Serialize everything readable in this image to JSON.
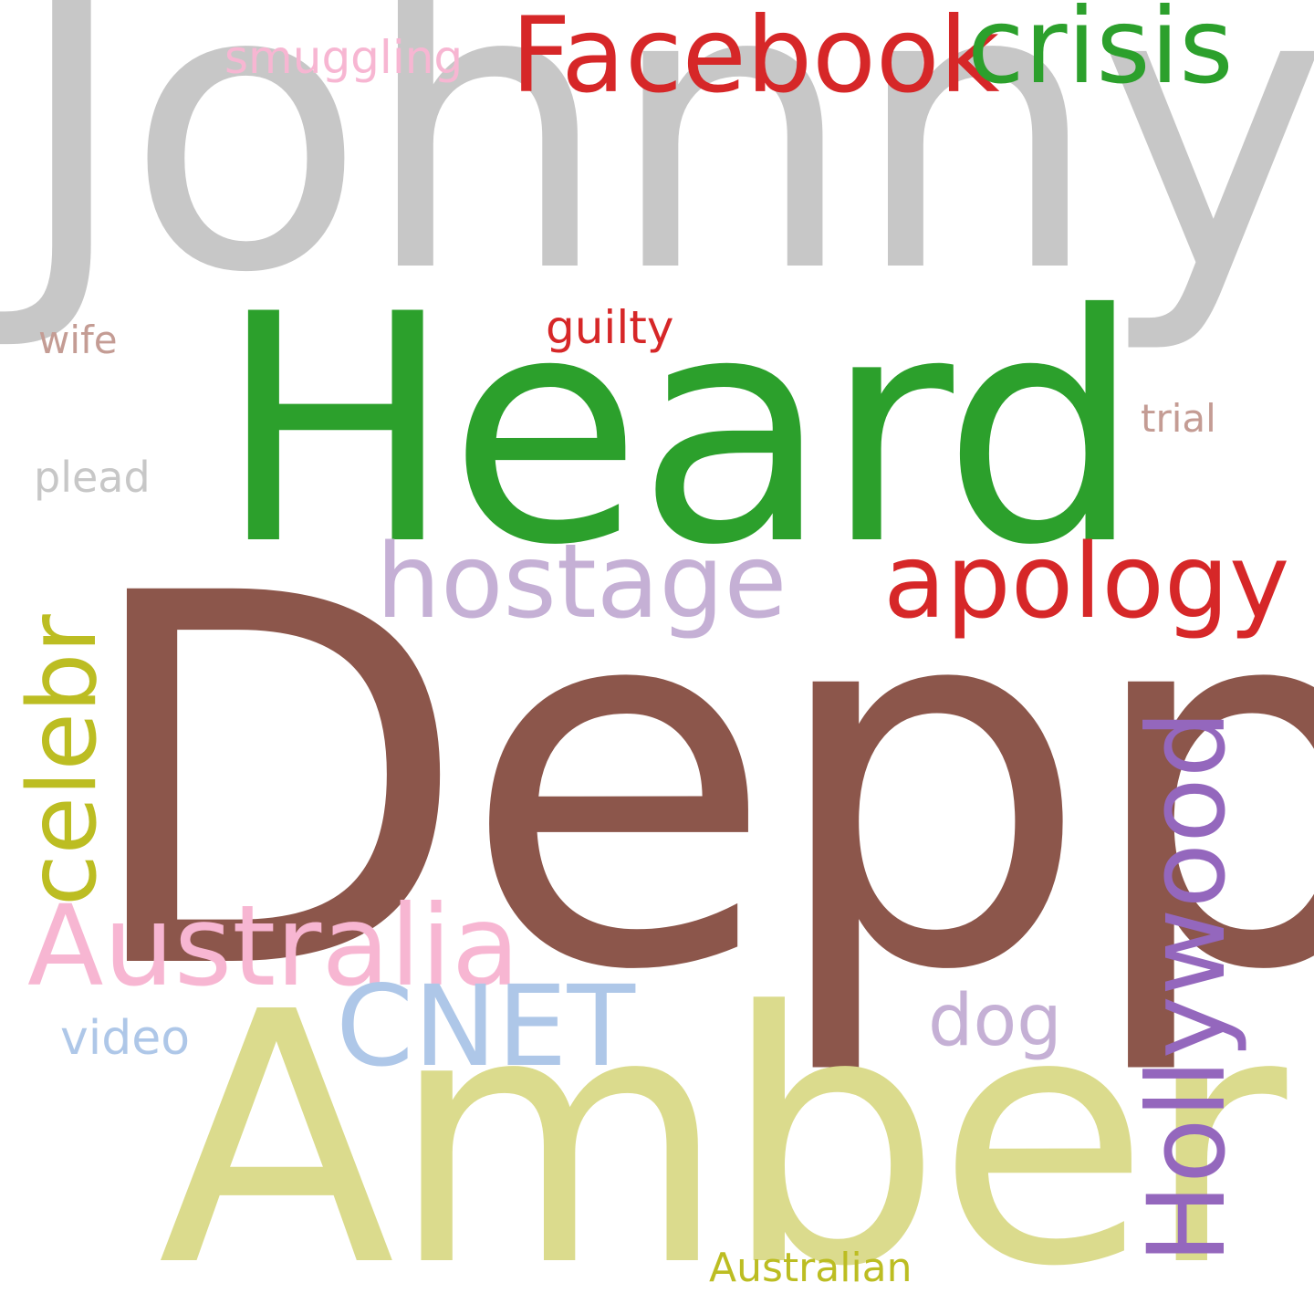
{
  "word_cloud": {
    "words": {
      "johnny": {
        "text": "Johnny",
        "color": "#c7c7c7"
      },
      "depp": {
        "text": "Depp",
        "color": "#8c564b"
      },
      "amber": {
        "text": "Amber",
        "color": "#dbdb8d"
      },
      "heard": {
        "text": "Heard",
        "color": "#2ca02c"
      },
      "facebook": {
        "text": "Facebook",
        "color": "#d62728"
      },
      "crisis": {
        "text": "crisis",
        "color": "#2ca02c"
      },
      "smuggling": {
        "text": "smuggling",
        "color": "#f7b6d2"
      },
      "guilty": {
        "text": "guilty",
        "color": "#d62728"
      },
      "wife": {
        "text": "wife",
        "color": "#c49c94"
      },
      "trial": {
        "text": "trial",
        "color": "#c49c94"
      },
      "plead": {
        "text": "plead",
        "color": "#c7c7c7"
      },
      "hostage": {
        "text": "hostage",
        "color": "#c5b0d5"
      },
      "apology": {
        "text": "apology",
        "color": "#d62728"
      },
      "celebr": {
        "text": "celebr",
        "color": "#bcbd22"
      },
      "australia": {
        "text": "Australia",
        "color": "#f7b6d2"
      },
      "cnet": {
        "text": "CNET",
        "color": "#aec7e8"
      },
      "dog": {
        "text": "dog",
        "color": "#c5b0d5"
      },
      "video": {
        "text": "video",
        "color": "#aec7e8"
      },
      "hollywood": {
        "text": "Hollywood",
        "color": "#9467bd"
      },
      "australian": {
        "text": "Australian",
        "color": "#bcbd22"
      }
    }
  }
}
